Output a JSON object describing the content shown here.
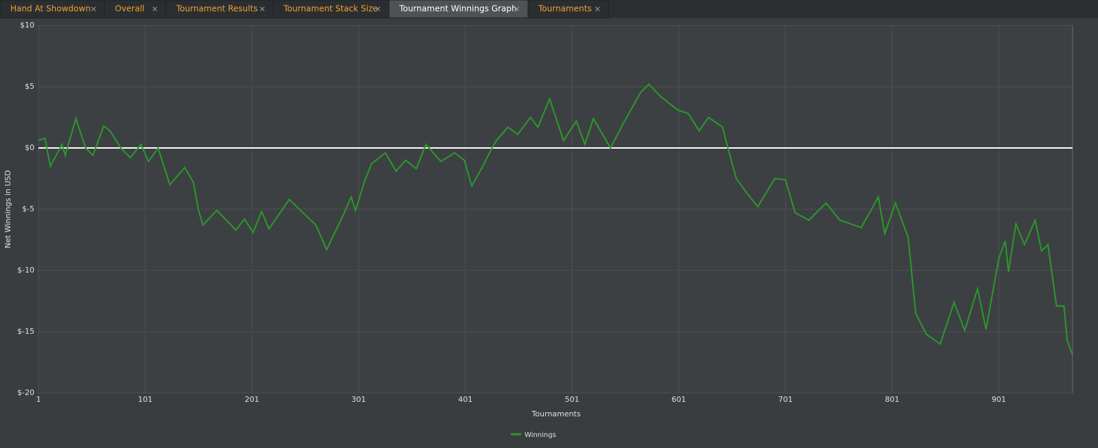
{
  "tabs": [
    "Hand At Showdown",
    "Overall",
    "Tournament Results",
    "Tournament Stack Size",
    "Tournament Winnings Graph",
    "Tournaments"
  ],
  "active_tab": 4,
  "chart_data": {
    "type": "line",
    "y_label": "Net Winnings in USD",
    "x_label": "Tournaments",
    "x": [
      1,
      7,
      12,
      23,
      26,
      36,
      45,
      52,
      62,
      68,
      78,
      87,
      97,
      104,
      113,
      124,
      138,
      146,
      151,
      155,
      168,
      186,
      194,
      202,
      210,
      217,
      236,
      249,
      261,
      271,
      287,
      294,
      298,
      307,
      313,
      326,
      336,
      345,
      355,
      364,
      378,
      391,
      400,
      407,
      416,
      426,
      430,
      441,
      450,
      462,
      469,
      480,
      493,
      505,
      513,
      521,
      537,
      549,
      565,
      573,
      584,
      600,
      610,
      620,
      629,
      642,
      647,
      655,
      665,
      675,
      691,
      701,
      710,
      723,
      739,
      752,
      772,
      788,
      794,
      804,
      816,
      823,
      833,
      846,
      859,
      869,
      881,
      889,
      901,
      907,
      910,
      917,
      925,
      935,
      941,
      947,
      955,
      962,
      965,
      970
    ],
    "series": [
      {
        "name": "Winnings",
        "color": "#2a9a2a",
        "values": [
          0.6,
          0.8,
          -1.5,
          0.3,
          -0.6,
          2.4,
          0,
          -0.6,
          1.8,
          1.4,
          0,
          -0.8,
          0.3,
          -1.1,
          0,
          -3.0,
          -1.6,
          -2.8,
          -5.1,
          -6.3,
          -5.1,
          -6.7,
          -5.8,
          -6.9,
          -5.2,
          -6.6,
          -4.2,
          -5.3,
          -6.3,
          -8.3,
          -5.4,
          -4.0,
          -5.1,
          -2.6,
          -1.3,
          -0.4,
          -1.9,
          -1.0,
          -1.7,
          0.3,
          -1.1,
          -0.4,
          -1.0,
          -3.1,
          -1.7,
          0,
          0.6,
          1.7,
          1.1,
          2.5,
          1.7,
          4.0,
          0.6,
          2.2,
          0.3,
          2.4,
          0,
          2.0,
          4.5,
          5.2,
          4.2,
          3.1,
          2.8,
          1.4,
          2.5,
          1.7,
          0,
          -2.5,
          -3.7,
          -4.8,
          -2.5,
          -2.6,
          -5.3,
          -5.9,
          -4.5,
          -5.9,
          -6.5,
          -4.0,
          -7.0,
          -4.5,
          -7.3,
          -13.5,
          -15.2,
          -16.0,
          -12.6,
          -14.9,
          -11.5,
          -14.8,
          -9.0,
          -7.6,
          -10.1,
          -6.2,
          -7.9,
          -5.9,
          -8.4,
          -7.9,
          -12.9,
          -12.9,
          -15.7,
          -16.9
        ]
      }
    ],
    "xlim": [
      1,
      970
    ],
    "xticks": [
      1,
      101,
      201,
      301,
      401,
      501,
      601,
      701,
      801,
      901
    ],
    "ylim": [
      -20,
      10
    ],
    "yticks": [
      {
        "value": -20,
        "label": "$-20"
      },
      {
        "value": -15,
        "label": "$-15"
      },
      {
        "value": -10,
        "label": "$-10"
      },
      {
        "value": -5,
        "label": "$-5"
      },
      {
        "value": 0,
        "label": "$0"
      },
      {
        "value": 5,
        "label": "$5"
      },
      {
        "value": 10,
        "label": "$10"
      }
    ],
    "grid": true
  }
}
